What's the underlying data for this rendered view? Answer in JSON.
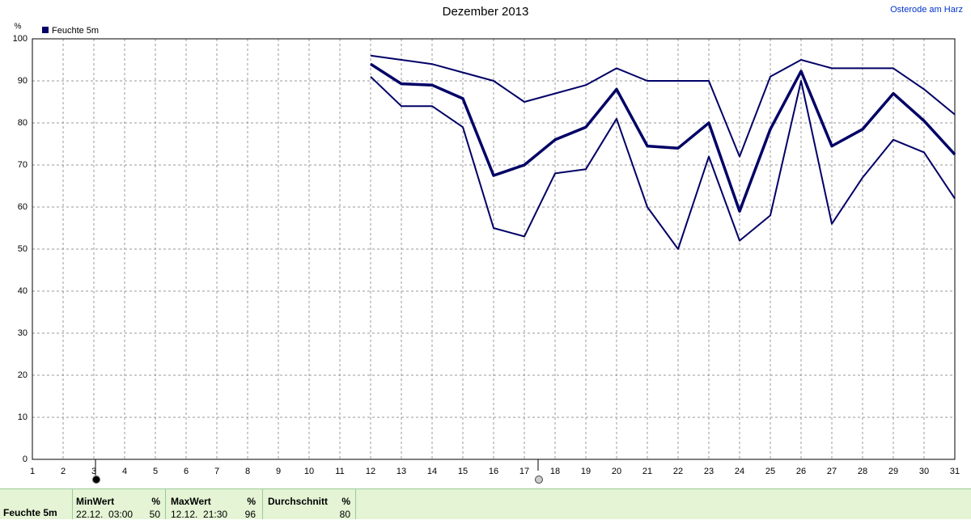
{
  "chart_data": {
    "type": "line",
    "title": "Dezember 2013",
    "location": "Osterode am Harz",
    "y_unit": "%",
    "x": [
      1,
      2,
      3,
      4,
      5,
      6,
      7,
      8,
      9,
      10,
      11,
      12,
      13,
      14,
      15,
      16,
      17,
      18,
      19,
      20,
      21,
      22,
      23,
      24,
      25,
      26,
      27,
      28,
      29,
      30,
      31
    ],
    "series": [
      {
        "name": "Feuchte 5m",
        "color": "#000066",
        "values": [
          null,
          null,
          null,
          null,
          null,
          null,
          null,
          null,
          null,
          null,
          null,
          94,
          89.3,
          89,
          85.8,
          67.5,
          70,
          76,
          79,
          88,
          74.5,
          74,
          80,
          59,
          78.5,
          92.3,
          74.5,
          78.5,
          87,
          80.5,
          72.5
        ],
        "max": [
          null,
          null,
          null,
          null,
          null,
          null,
          null,
          null,
          null,
          null,
          null,
          96,
          95,
          94,
          92,
          90,
          85,
          87,
          89,
          93,
          90,
          90,
          90,
          72,
          91,
          95,
          93,
          93,
          93,
          88,
          82
        ],
        "min": [
          null,
          null,
          null,
          null,
          null,
          null,
          null,
          null,
          null,
          null,
          null,
          91,
          84,
          84,
          79,
          55,
          53,
          68,
          69,
          81,
          60,
          50,
          72,
          52,
          58,
          90,
          56,
          67,
          76,
          73,
          62
        ]
      }
    ],
    "xlim": [
      1,
      31
    ],
    "xticks": [
      1,
      2,
      3,
      4,
      5,
      6,
      7,
      8,
      9,
      10,
      11,
      12,
      13,
      14,
      15,
      16,
      17,
      18,
      19,
      20,
      21,
      22,
      23,
      24,
      25,
      26,
      27,
      28,
      29,
      30,
      31
    ],
    "ylim": [
      0,
      100
    ],
    "yticks": [
      0,
      10,
      20,
      30,
      40,
      50,
      60,
      70,
      80,
      90,
      100
    ],
    "grid": true
  },
  "summary": {
    "label": "Feuchte 5m",
    "min": {
      "header": "MinWert",
      "unit": "%",
      "time": "22.12.  03:00",
      "value": 50
    },
    "max": {
      "header": "MaxWert",
      "unit": "%",
      "time": "12.12.  21:30",
      "value": 96
    },
    "avg": {
      "header": "Durchschnitt",
      "unit": "%",
      "value": 80
    }
  }
}
